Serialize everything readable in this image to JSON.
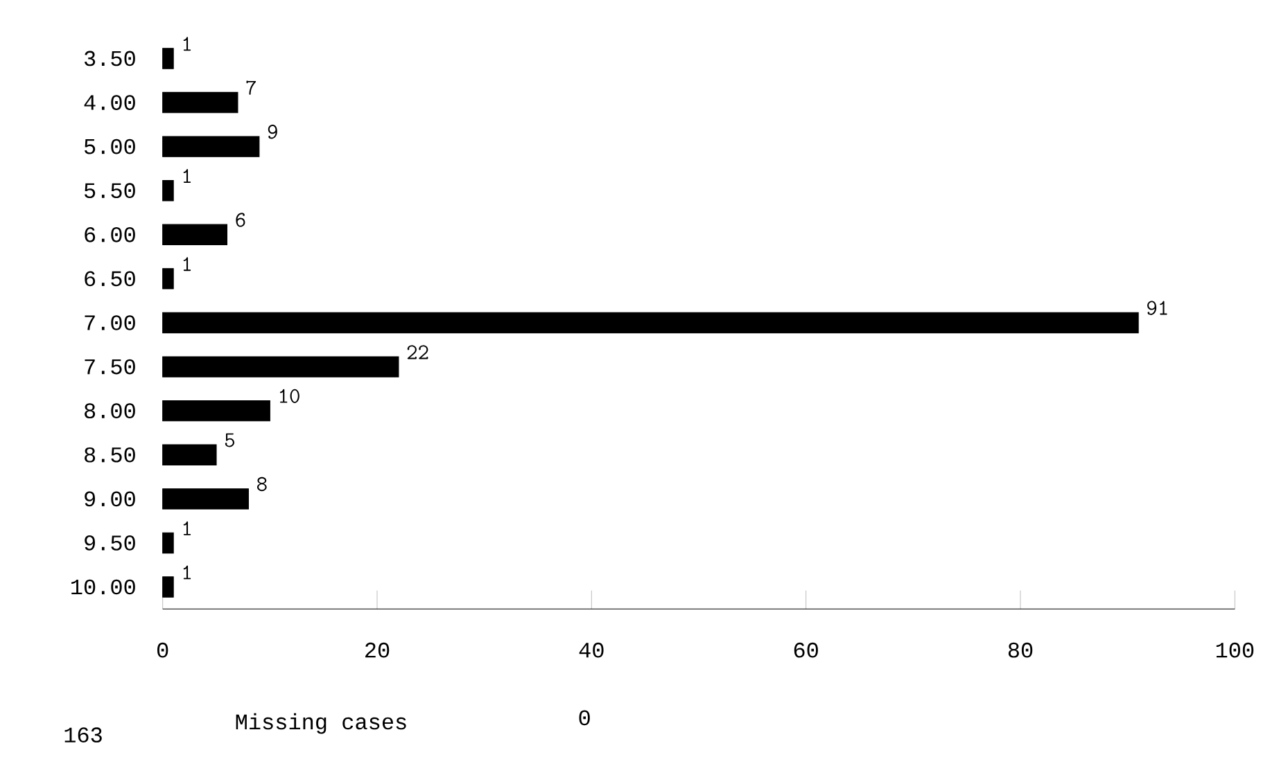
{
  "chart_data": {
    "type": "bar",
    "orientation": "horizontal",
    "categories": [
      "3.50",
      "4.00",
      "5.00",
      "5.50",
      "6.00",
      "6.50",
      "7.00",
      "7.50",
      "8.00",
      "8.50",
      "9.00",
      "9.50",
      "10.00"
    ],
    "values": [
      1,
      7,
      9,
      1,
      6,
      1,
      91,
      22,
      10,
      5,
      8,
      1,
      1
    ],
    "color": "#000000",
    "data_labels": true,
    "xlim": [
      0,
      100
    ],
    "xticks": [
      0,
      20,
      40,
      60,
      80,
      100
    ],
    "annotations": [
      "163",
      "Missing cases",
      "0"
    ]
  }
}
